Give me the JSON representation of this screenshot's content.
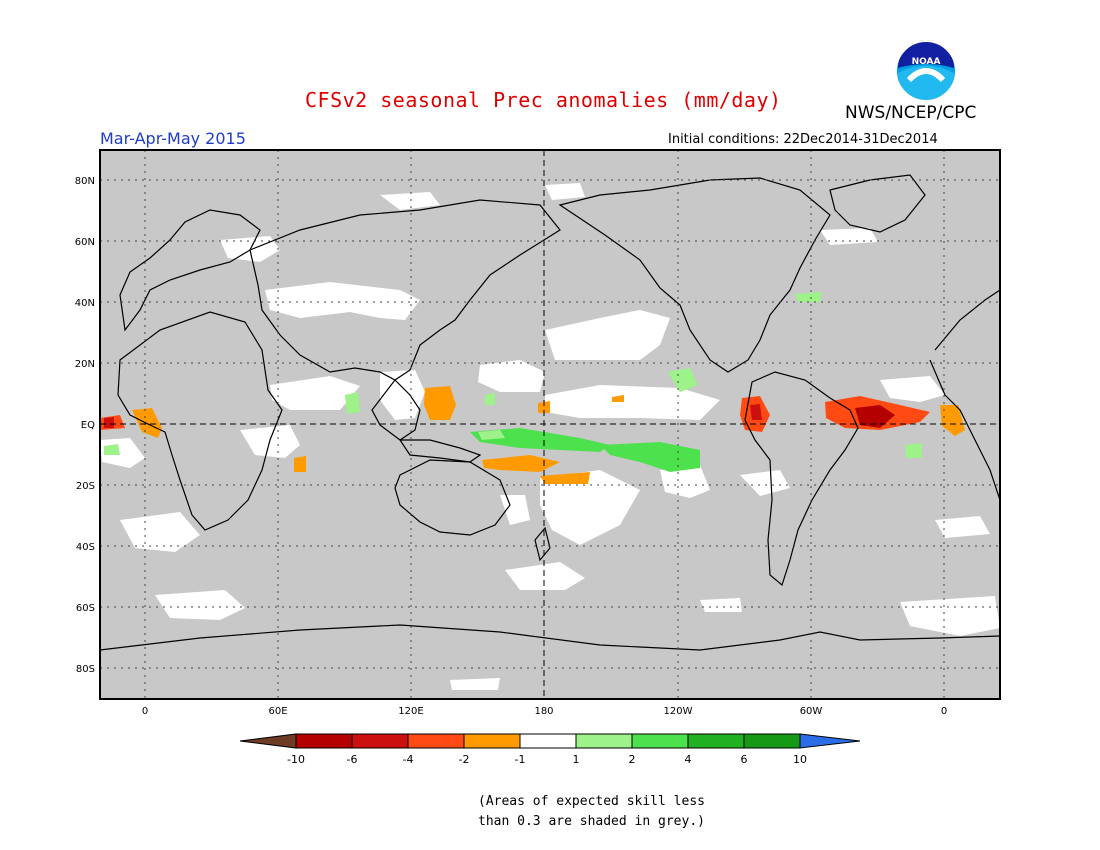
{
  "header": {
    "title": "CFSv2 seasonal Prec anomalies (mm/day)",
    "agency": "NWS/NCEP/CPC",
    "logo_text": "NOAA",
    "season": "Mar-Apr-May 2015",
    "initial_conditions": "Initial conditions: 22Dec2014-31Dec2014"
  },
  "map": {
    "lat_labels": [
      "80N",
      "60N",
      "40N",
      "20N",
      "EQ",
      "20S",
      "40S",
      "60S",
      "80S"
    ],
    "lon_labels": [
      "0",
      "60E",
      "120E",
      "180",
      "120W",
      "60W",
      "0"
    ],
    "grey_shading_color": "#c8c8c8",
    "coastline_color": "#000000"
  },
  "legend": {
    "labels": [
      "-10",
      "-6",
      "-4",
      "-2",
      "-1",
      "1",
      "2",
      "4",
      "6",
      "10"
    ],
    "colors": [
      "#6e3c24",
      "#b40000",
      "#cc1010",
      "#ff4a14",
      "#ff9a00",
      "#ffffff",
      "#9df28a",
      "#4ee14e",
      "#20b020",
      "#169a16",
      "#2a6de6"
    ]
  },
  "footnote": {
    "line1": "(Areas of expected skill less",
    "line2": "than 0.3 are shaded in grey.)"
  }
}
